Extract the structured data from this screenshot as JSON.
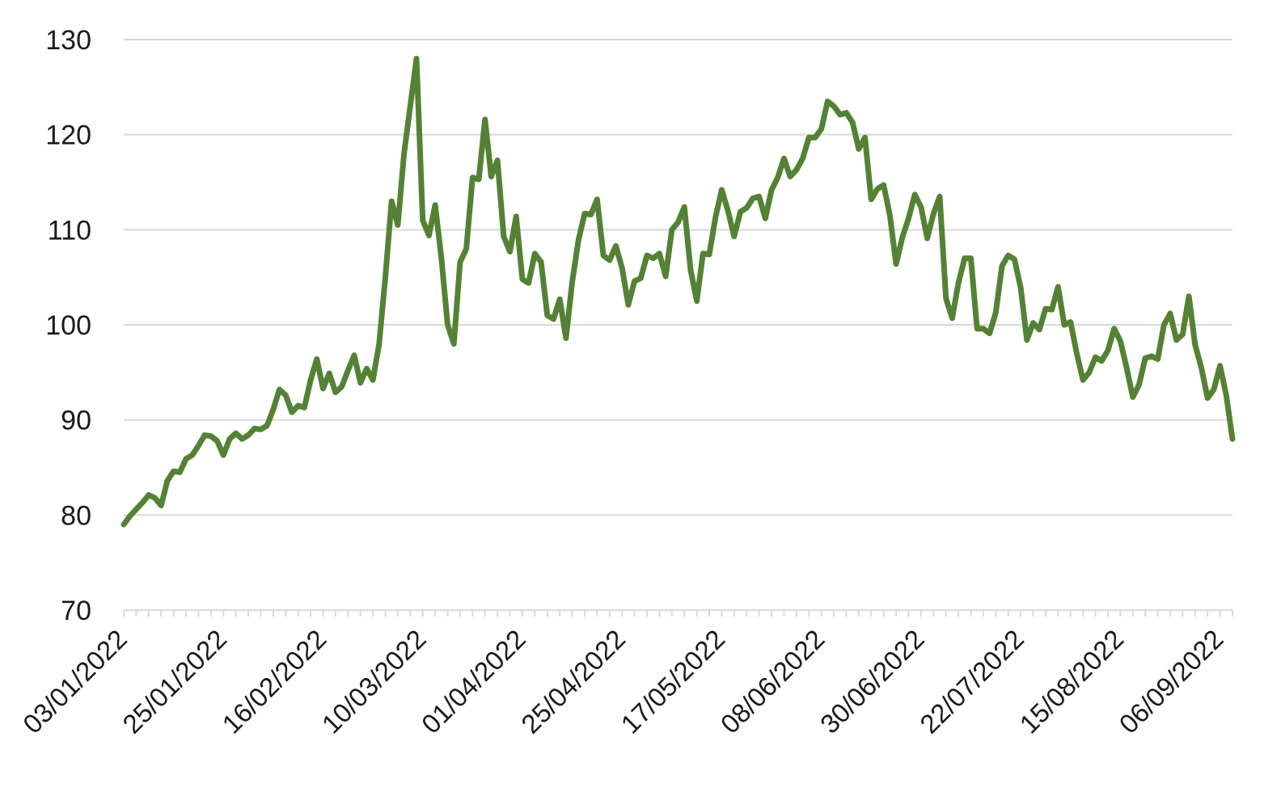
{
  "colors": {
    "series": "#548235",
    "grid": "#d9d9d9",
    "text": "#1a1a1a",
    "background": "#ffffff"
  },
  "chart_data": {
    "type": "line",
    "title": "",
    "xlabel": "",
    "ylabel": "",
    "ylim": [
      70,
      130
    ],
    "y_ticks": [
      70,
      80,
      90,
      100,
      110,
      120,
      130
    ],
    "grid": true,
    "legend": "none",
    "x_tick_labels": [
      "03/01/2022",
      "25/01/2022",
      "16/02/2022",
      "10/03/2022",
      "01/04/2022",
      "25/04/2022",
      "17/05/2022",
      "08/06/2022",
      "30/06/2022",
      "22/07/2022",
      "15/08/2022",
      "06/09/2022"
    ],
    "x_tick_positions": [
      0,
      16,
      32,
      48,
      64,
      80,
      96,
      112,
      128,
      144,
      160,
      176
    ],
    "series": [
      {
        "values": [
          79.0,
          79.9,
          80.6,
          81.3,
          82.1,
          81.8,
          81.0,
          83.6,
          84.6,
          84.5,
          85.9,
          86.3,
          87.3,
          88.4,
          88.3,
          87.8,
          86.3,
          88.0,
          88.6,
          88.0,
          88.4,
          89.1,
          89.0,
          89.4,
          91.1,
          93.2,
          92.6,
          90.8,
          91.5,
          91.3,
          94.2,
          96.4,
          93.3,
          94.9,
          92.9,
          93.5,
          95.2,
          96.8,
          93.9,
          95.4,
          94.2,
          98.0,
          105.0,
          113.0,
          110.5,
          118.0,
          123.0,
          128.0,
          111.0,
          109.4,
          112.6,
          107.0,
          100.0,
          98.0,
          106.6,
          108.0,
          115.5,
          115.3,
          121.6,
          115.6,
          117.3,
          109.3,
          107.7,
          111.4,
          104.8,
          104.4,
          107.5,
          106.6,
          101.0,
          100.6,
          102.7,
          98.6,
          104.5,
          108.9,
          111.7,
          111.6,
          113.2,
          107.3,
          106.8,
          108.3,
          106.0,
          102.1,
          104.6,
          104.9,
          107.3,
          107.0,
          107.5,
          105.1,
          110.0,
          110.8,
          112.4,
          105.8,
          102.5,
          107.5,
          107.4,
          111.3,
          114.2,
          112.0,
          109.3,
          111.9,
          112.3,
          113.3,
          113.5,
          111.2,
          114.2,
          115.5,
          117.5,
          115.6,
          116.3,
          117.5,
          119.7,
          119.7,
          120.6,
          123.5,
          123.0,
          122.1,
          122.3,
          121.3,
          118.5,
          119.7,
          113.2,
          114.3,
          114.7,
          111.5,
          106.4,
          109.2,
          111.2,
          113.7,
          112.4,
          109.1,
          111.7,
          113.5,
          102.8,
          100.7,
          104.4,
          107.0,
          107.0,
          99.6,
          99.6,
          99.1,
          101.3,
          106.2,
          107.3,
          106.9,
          103.9,
          98.4,
          100.2,
          99.5,
          101.7,
          101.6,
          104.0,
          100.0,
          100.3,
          97.0,
          94.2,
          95.0,
          96.6,
          96.2,
          97.3,
          99.6,
          98.3,
          95.5,
          92.4,
          93.7,
          96.5,
          96.7,
          96.4,
          100.0,
          101.2,
          98.4,
          99.0,
          103.0,
          97.9,
          95.5,
          92.3,
          93.2,
          95.7,
          92.6,
          88.0
        ]
      }
    ]
  }
}
